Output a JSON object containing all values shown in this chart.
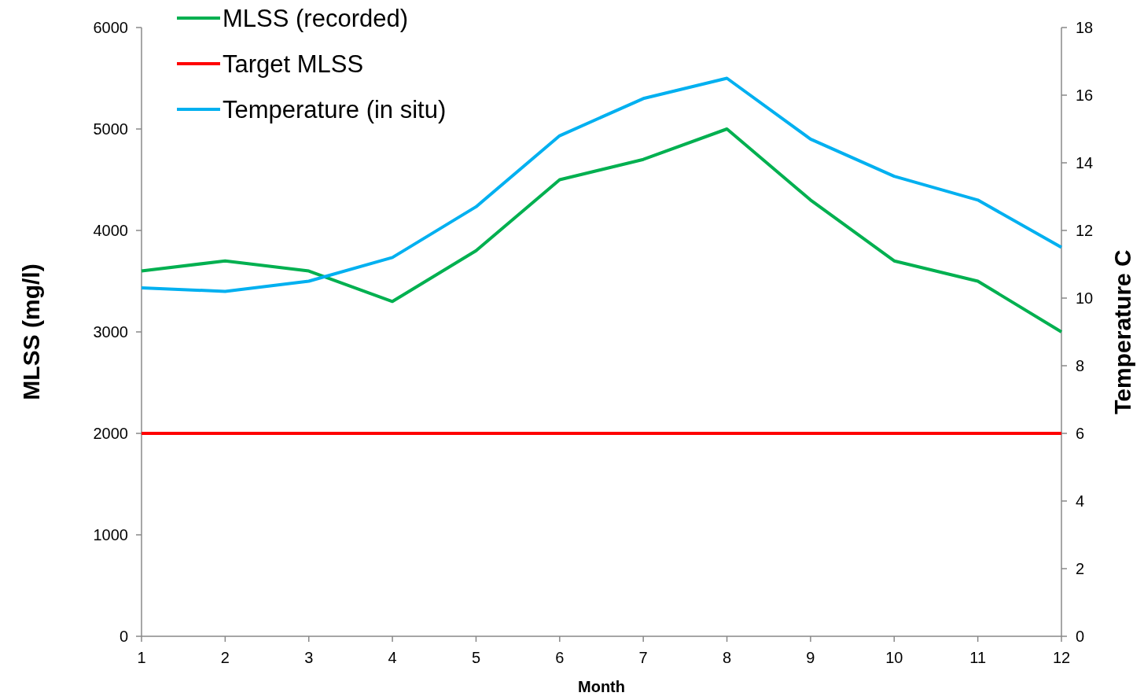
{
  "chart_data": {
    "type": "line",
    "xlabel": "Month",
    "ylabel": "MLSS (mg/l)",
    "y2label": "Temperature C",
    "x": [
      1,
      2,
      3,
      4,
      5,
      6,
      7,
      8,
      9,
      10,
      11,
      12
    ],
    "xlim": [
      1,
      12
    ],
    "xticks": [
      1,
      2,
      3,
      4,
      5,
      6,
      7,
      8,
      9,
      10,
      11,
      12
    ],
    "ylim": [
      0,
      6000
    ],
    "yticks": [
      0,
      1000,
      2000,
      3000,
      4000,
      5000,
      6000
    ],
    "y2lim": [
      0,
      18
    ],
    "y2ticks": [
      0,
      2,
      4,
      6,
      8,
      10,
      12,
      14,
      16,
      18
    ],
    "grid": false,
    "legend": "top left",
    "marker": "none",
    "line_style": "solid",
    "series": [
      {
        "name": "MLSS (recorded)",
        "color": "#00b050",
        "values": [
          3600,
          3700,
          3600,
          3300,
          3800,
          4500,
          4700,
          5000,
          4300,
          3700,
          3500,
          3000
        ]
      },
      {
        "name": "Target MLSS",
        "color": "#ff0000",
        "values": [
          2000,
          2000,
          2000,
          2000,
          2000,
          2000,
          2000,
          2000,
          2000,
          2000,
          2000,
          2000
        ]
      },
      {
        "name": "Temperature (in situ)",
        "color": "#00b0f0",
        "axis": "y2",
        "values": [
          10.3,
          10.2,
          10.5,
          11.2,
          12.7,
          14.8,
          15.9,
          16.5,
          14.7,
          13.6,
          12.9,
          11.5
        ]
      }
    ]
  }
}
